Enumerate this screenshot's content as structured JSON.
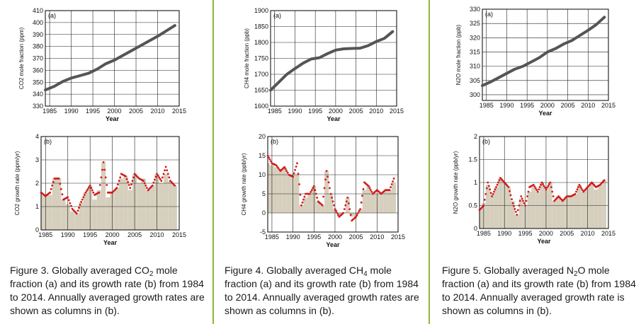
{
  "colors": {
    "divider": "#8db83a",
    "line": "#555555",
    "marker": "#d11a1a",
    "column": "#d6cfbd",
    "grid": "#222222"
  },
  "captions": [
    {
      "pre": "Figure 3. Globally averaged CO",
      "sub": "2",
      "post": " mole fraction (a) and its growth rate (b) from 1984 to 2014. Annually averaged growth rates are shown as columns in (b)."
    },
    {
      "pre": "Figure 4. Globally averaged CH",
      "sub": "4",
      "post": " mole fraction (a) and its growth rate (b) from 1984 to 2014. Annually averaged growth rates are shown as columns in (b)."
    },
    {
      "pre": "Figure 5. Globally averaged N",
      "sub": "2",
      "post": "O mole fraction (a) and its growth rate (b) from 1984 to 2014. Annually averaged growth rate is shown as columns in (b)."
    }
  ],
  "chart_data": [
    {
      "type": "line",
      "panel": "(a)",
      "ylabel": "CO2 mole fraction (ppm)",
      "xlabel": "Year",
      "xlim": [
        1984,
        2015
      ],
      "ylim": [
        330,
        410
      ],
      "xticks": [
        1985,
        1990,
        1995,
        2000,
        2005,
        2010,
        2015
      ],
      "yticks": [
        330,
        340,
        350,
        360,
        370,
        380,
        390,
        400,
        410
      ],
      "x": [
        1984,
        1986,
        1988,
        1990,
        1992,
        1994,
        1996,
        1998,
        2000,
        2002,
        2004,
        2006,
        2008,
        2010,
        2012,
        2014
      ],
      "y": [
        343.5,
        346.5,
        350.5,
        353.5,
        355.5,
        357.5,
        361,
        365.5,
        368.5,
        372.5,
        376.5,
        380.5,
        384.5,
        388.5,
        393,
        397.5
      ]
    },
    {
      "type": "area",
      "panel": "(b)",
      "ylabel": "CO2 growth rate (ppm/yr)",
      "xlabel": "Year",
      "xlim": [
        1984,
        2015
      ],
      "ylim": [
        0,
        4
      ],
      "xticks": [
        1985,
        1990,
        1995,
        2000,
        2005,
        2010,
        2015
      ],
      "yticks": [
        0,
        1,
        2,
        3,
        4
      ],
      "x": [
        1984,
        1985,
        1986,
        1987,
        1988,
        1989,
        1990,
        1991,
        1992,
        1993,
        1994,
        1995,
        1996,
        1997,
        1998,
        1999,
        2000,
        2001,
        2002,
        2003,
        2004,
        2005,
        2006,
        2007,
        2008,
        2009,
        2010,
        2011,
        2012,
        2013,
        2014
      ],
      "y": [
        1.6,
        1.45,
        1.6,
        2.2,
        2.2,
        1.3,
        1.4,
        0.9,
        0.7,
        1.2,
        1.6,
        1.9,
        1.5,
        1.6,
        2.9,
        1.6,
        1.6,
        1.8,
        2.4,
        2.3,
        1.8,
        2.4,
        2.2,
        2.1,
        1.7,
        1.9,
        2.4,
        2.1,
        2.7,
        2.1,
        1.9
      ],
      "annual": [
        1.5,
        1.5,
        1.5,
        2.2,
        2.2,
        1.3,
        1.1,
        0.8,
        0.7,
        1.2,
        1.6,
        1.9,
        1.3,
        1.7,
        2.9,
        1.4,
        1.6,
        1.8,
        2.2,
        2.3,
        1.7,
        2.4,
        2.0,
        2.2,
        1.7,
        1.9,
        2.4,
        2.0,
        2.4,
        2.1,
        1.9
      ]
    },
    {
      "type": "line",
      "panel": "(a)",
      "ylabel": "CH4 mole fraction (ppb)",
      "xlabel": "Year",
      "xlim": [
        1984,
        2015
      ],
      "ylim": [
        1600,
        1900
      ],
      "xticks": [
        1985,
        1990,
        1995,
        2000,
        2005,
        2010,
        2015
      ],
      "yticks": [
        1600,
        1650,
        1700,
        1750,
        1800,
        1850,
        1900
      ],
      "x": [
        1984,
        1986,
        1988,
        1990,
        1992,
        1994,
        1996,
        1998,
        2000,
        2002,
        2004,
        2006,
        2008,
        2010,
        2012,
        2014
      ],
      "y": [
        1650,
        1675,
        1700,
        1718,
        1735,
        1748,
        1752,
        1765,
        1776,
        1780,
        1781,
        1782,
        1790,
        1803,
        1813,
        1834
      ]
    },
    {
      "type": "area",
      "panel": "(b)",
      "ylabel": "CH4 growth rate (ppb/yr)",
      "xlabel": "Year",
      "xlim": [
        1984,
        2015
      ],
      "ylim": [
        -5,
        20
      ],
      "xticks": [
        1985,
        1990,
        1995,
        2000,
        2005,
        2010,
        2015
      ],
      "yticks": [
        -5,
        0,
        5,
        10,
        15,
        20
      ],
      "x": [
        1984,
        1985,
        1986,
        1987,
        1988,
        1989,
        1990,
        1991,
        1992,
        1993,
        1994,
        1995,
        1996,
        1997,
        1998,
        1999,
        2000,
        2001,
        2002,
        2003,
        2004,
        2005,
        2006,
        2007,
        2008,
        2009,
        2010,
        2011,
        2012,
        2013,
        2014
      ],
      "y": [
        15,
        13,
        12.5,
        11,
        12,
        10,
        9.5,
        13,
        2,
        5,
        5,
        7,
        3,
        2,
        11,
        5,
        1,
        -1,
        0,
        4,
        -2,
        -1,
        1,
        8,
        7,
        5,
        6,
        5,
        6,
        6,
        9
      ],
      "annual": [
        13,
        12.5,
        12,
        11,
        12,
        10,
        10,
        10,
        2,
        4,
        5,
        7,
        3,
        2,
        11,
        5,
        1,
        -1,
        0,
        4,
        -1,
        -1,
        1,
        6,
        7,
        5,
        5,
        5,
        6,
        6,
        8
      ]
    },
    {
      "type": "line",
      "panel": "(a)",
      "ylabel": "N2O mole fraction (ppb)",
      "xlabel": "Year",
      "xlim": [
        1984,
        2015
      ],
      "ylim": [
        298,
        330
      ],
      "xticks": [
        1985,
        1990,
        1995,
        2000,
        2005,
        2010,
        2015
      ],
      "yticks": [
        300,
        305,
        310,
        315,
        320,
        325,
        330
      ],
      "x": [
        1984,
        1986,
        1988,
        1990,
        1992,
        1994,
        1996,
        1998,
        2000,
        2002,
        2004,
        2006,
        2008,
        2010,
        2012,
        2014
      ],
      "y": [
        303.2,
        304.5,
        306,
        307.5,
        309,
        310,
        311.5,
        313,
        315,
        316.2,
        317.8,
        319,
        320.8,
        322.6,
        324.6,
        327.2
      ]
    },
    {
      "type": "area",
      "panel": "(b)",
      "ylabel": "N2O growth rate (ppb/yr)",
      "xlabel": "Year",
      "xlim": [
        1984,
        2015
      ],
      "ylim": [
        0,
        2
      ],
      "xticks": [
        1985,
        1990,
        1995,
        2000,
        2005,
        2010,
        2015
      ],
      "yticks": [
        0,
        0.5,
        1,
        1.5,
        2
      ],
      "x": [
        1984,
        1985,
        1986,
        1987,
        1988,
        1989,
        1990,
        1991,
        1992,
        1993,
        1994,
        1995,
        1996,
        1997,
        1998,
        1999,
        2000,
        2001,
        2002,
        2003,
        2004,
        2005,
        2006,
        2007,
        2008,
        2009,
        2010,
        2011,
        2012,
        2013,
        2014
      ],
      "y": [
        0.4,
        0.5,
        1.0,
        0.7,
        0.9,
        1.1,
        1.0,
        0.9,
        0.55,
        0.3,
        0.7,
        0.5,
        0.9,
        0.95,
        0.8,
        1.0,
        0.85,
        1.0,
        0.6,
        0.7,
        0.6,
        0.7,
        0.7,
        0.75,
        0.95,
        0.8,
        0.9,
        1.0,
        0.9,
        0.95,
        1.05
      ],
      "annual": [
        0.4,
        0.55,
        0.95,
        0.75,
        0.9,
        1.1,
        1.0,
        0.9,
        0.6,
        0.3,
        0.65,
        0.5,
        0.8,
        0.9,
        0.8,
        1.0,
        0.85,
        1.0,
        0.6,
        0.7,
        0.6,
        0.7,
        0.7,
        0.75,
        0.95,
        0.8,
        0.9,
        1.0,
        0.85,
        0.95,
        1.05
      ]
    }
  ]
}
